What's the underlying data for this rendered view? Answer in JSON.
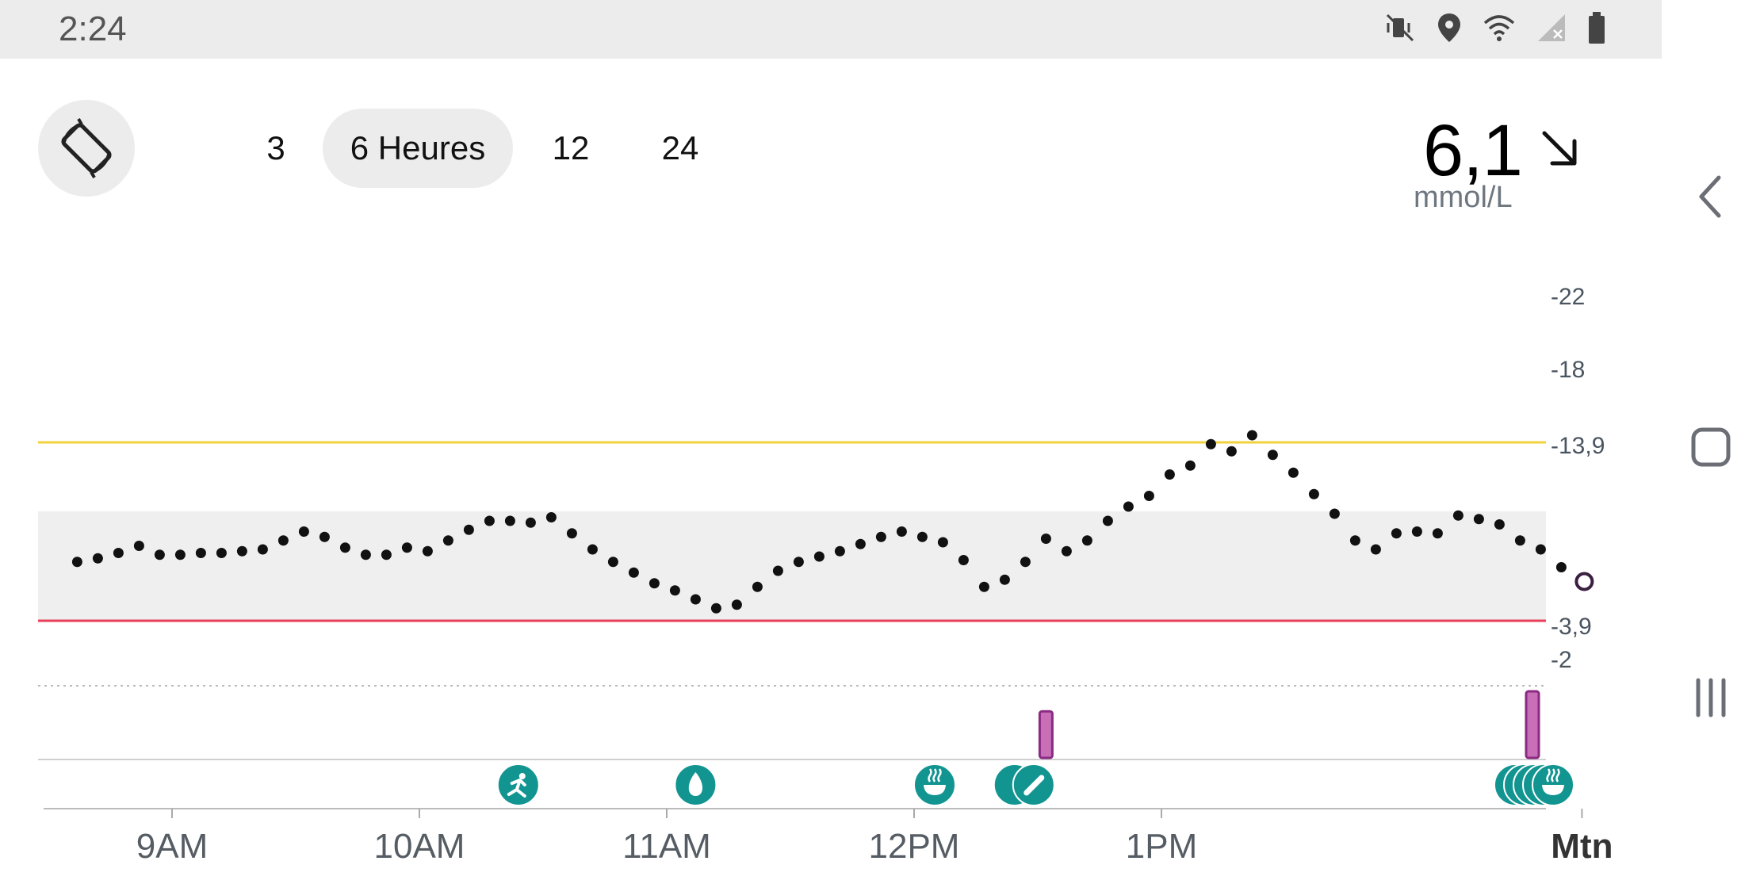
{
  "status_bar": {
    "time": "2:24",
    "icons": [
      "mute-vibrate-icon",
      "location-icon",
      "wifi-icon",
      "cellular-no-signal-icon",
      "battery-icon"
    ]
  },
  "controls": {
    "rotate_icon": "screen-rotation-icon",
    "time_ranges": [
      "3",
      "6 Heures",
      "12",
      "24"
    ],
    "selected_range": "6 Heures"
  },
  "current_reading": {
    "value": "6,1",
    "unit": "mmol/L",
    "trend_icon": "arrow-down-right-icon"
  },
  "chart_data": {
    "type": "scatter",
    "title": "",
    "xlabel": "",
    "ylabel": "",
    "x_ticks": [
      "9AM",
      "10AM",
      "11AM",
      "12PM",
      "1PM",
      "Mtn"
    ],
    "y_ticks": [
      "22",
      "18",
      "13,9",
      "3,9",
      "2"
    ],
    "target_range": [
      3.9,
      10
    ],
    "high_line": 13.9,
    "low_line": 3.9,
    "colors": {
      "high_line": "#f2d23a",
      "low_line": "#e8405a",
      "target_band": "#efefef",
      "points": "#111111",
      "event_icons": "#129591",
      "insulin_bars": "#c86fb8"
    },
    "series": [
      {
        "values": [
          [
            "8:37",
            7.2
          ],
          [
            "8:42",
            7.4
          ],
          [
            "8:47",
            7.7
          ],
          [
            "8:52",
            8.1
          ],
          [
            "8:57",
            7.6
          ],
          [
            "9:02",
            7.6
          ],
          [
            "9:07",
            7.7
          ],
          [
            "9:12",
            7.7
          ],
          [
            "9:17",
            7.8
          ],
          [
            "9:22",
            7.9
          ],
          [
            "9:27",
            8.4
          ],
          [
            "9:32",
            8.9
          ],
          [
            "9:37",
            8.6
          ],
          [
            "9:42",
            8.0
          ],
          [
            "9:47",
            7.6
          ],
          [
            "9:52",
            7.6
          ],
          [
            "9:57",
            8.0
          ],
          [
            "10:02",
            7.8
          ],
          [
            "10:07",
            8.4
          ],
          [
            "10:12",
            9.0
          ],
          [
            "10:17",
            9.5
          ],
          [
            "10:22",
            9.5
          ],
          [
            "10:27",
            9.4
          ],
          [
            "10:32",
            9.7
          ],
          [
            "10:37",
            8.8
          ],
          [
            "10:42",
            7.9
          ],
          [
            "10:47",
            7.2
          ],
          [
            "10:52",
            6.6
          ],
          [
            "10:57",
            6.0
          ],
          [
            "11:02",
            5.6
          ],
          [
            "11:07",
            5.1
          ],
          [
            "11:12",
            4.6
          ],
          [
            "11:17",
            4.8
          ],
          [
            "11:22",
            5.8
          ],
          [
            "11:27",
            6.7
          ],
          [
            "11:32",
            7.2
          ],
          [
            "11:37",
            7.5
          ],
          [
            "11:42",
            7.8
          ],
          [
            "11:47",
            8.2
          ],
          [
            "11:52",
            8.6
          ],
          [
            "11:57",
            8.9
          ],
          [
            "12:02",
            8.6
          ],
          [
            "12:07",
            8.3
          ],
          [
            "12:12",
            7.3
          ],
          [
            "12:17",
            5.8
          ],
          [
            "12:22",
            6.2
          ],
          [
            "12:27",
            7.2
          ],
          [
            "12:32",
            8.5
          ],
          [
            "12:37",
            7.8
          ],
          [
            "12:42",
            8.4
          ],
          [
            "12:47",
            9.5
          ],
          [
            "12:52",
            10.3
          ],
          [
            "12:57",
            10.9
          ],
          [
            "13:02",
            12.1
          ],
          [
            "13:07",
            12.6
          ],
          [
            "13:12",
            13.8
          ],
          [
            "13:17",
            13.4
          ],
          [
            "13:22",
            14.3
          ],
          [
            "13:27",
            13.2
          ],
          [
            "13:32",
            12.2
          ],
          [
            "13:37",
            11.0
          ],
          [
            "13:42",
            9.9
          ],
          [
            "13:47",
            8.4
          ],
          [
            "13:52",
            7.9
          ],
          [
            "13:57",
            8.8
          ],
          [
            "14:02",
            8.9
          ],
          [
            "14:07",
            8.8
          ],
          [
            "14:12",
            9.8
          ],
          [
            "14:17",
            9.6
          ],
          [
            "14:22",
            9.3
          ],
          [
            "14:27",
            8.4
          ],
          [
            "14:32",
            7.9
          ],
          [
            "14:37",
            6.9
          ]
        ]
      }
    ],
    "current_point": [
      "14:42",
      6.1
    ],
    "events": [
      {
        "time": "10:24",
        "icon": "exercise-icon"
      },
      {
        "time": "11:07",
        "icon": "water-drop-icon"
      },
      {
        "time": "12:05",
        "icon": "food-bowl-icon"
      },
      {
        "time": "12:29",
        "icon": "insulin-pen-icon",
        "count": 2
      },
      {
        "time": "14:35",
        "icon": "food-bowl-icon",
        "count": 5
      }
    ],
    "insulin_doses": [
      {
        "time": "12:32",
        "relative_size": 0.7
      },
      {
        "time": "14:30",
        "relative_size": 1.0
      }
    ]
  }
}
